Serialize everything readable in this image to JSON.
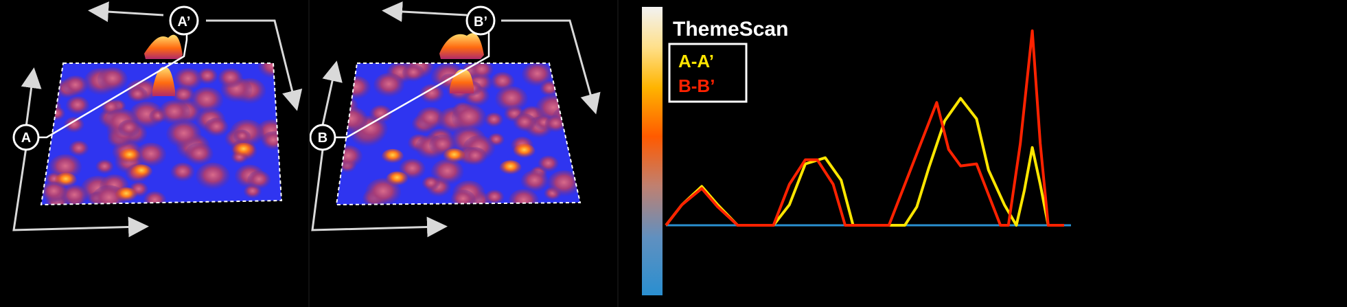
{
  "panels": [
    {
      "start_label": "A",
      "end_label": "A’"
    },
    {
      "start_label": "B",
      "end_label": "B’"
    }
  ],
  "colors": {
    "surface_base": "#2f35f0",
    "dashed_border": "#ffffff",
    "arrow": "#d9d9d9",
    "series_a": "#ffe600",
    "series_b": "#ff2200",
    "baseline": "#2a8fd0"
  },
  "chart_data": {
    "type": "line",
    "title": "ThemeScan",
    "xlabel": "",
    "ylabel": "",
    "grid": false,
    "legend_position": "top-left",
    "xlim": [
      0,
      100
    ],
    "ylim": [
      0,
      100
    ],
    "colorbar": [
      "#f5f5f5",
      "#ffcc00",
      "#ff5500",
      "#aa5a6a",
      "#2a8fd0"
    ],
    "series": [
      {
        "name": "A-A’",
        "color": "#ffe600",
        "x": [
          0,
          4,
          9,
          13,
          18,
          22,
          27,
          31,
          35,
          40,
          44,
          47,
          51,
          56,
          60,
          63,
          66,
          70,
          74,
          78,
          81,
          85,
          88,
          90,
          92,
          94,
          96,
          98,
          100
        ],
        "y": [
          0,
          10,
          19,
          10,
          0,
          0,
          0,
          10,
          30,
          33,
          22,
          0,
          0,
          0,
          0,
          9,
          28,
          51,
          62,
          52,
          27,
          10,
          0,
          17,
          38,
          20,
          0,
          0,
          0
        ]
      },
      {
        "name": "B-B’",
        "color": "#ff2200",
        "x": [
          0,
          4,
          9,
          13,
          18,
          22,
          27,
          31,
          35,
          38,
          42,
          45,
          47,
          51,
          56,
          60,
          64,
          68,
          71,
          74,
          78,
          81,
          84,
          86,
          89,
          92,
          94,
          96,
          98,
          100
        ],
        "y": [
          0,
          10,
          18,
          9,
          0,
          0,
          0,
          20,
          32,
          32,
          20,
          0,
          0,
          0,
          0,
          20,
          40,
          60,
          37,
          29,
          30,
          15,
          0,
          0,
          40,
          95,
          40,
          0,
          0,
          0
        ]
      }
    ]
  }
}
